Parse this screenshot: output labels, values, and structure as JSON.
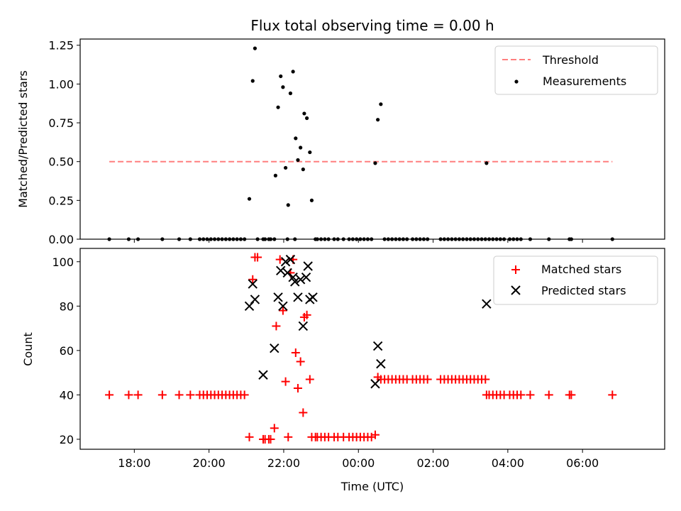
{
  "chart_data": [
    {
      "type": "scatter",
      "title": "Flux total observing time = 0.00 h",
      "xlabel": "",
      "ylabel": "Matched/Predicted stars",
      "xlim_hours": [
        16.55,
        32.2
      ],
      "ylim": [
        0,
        1.29
      ],
      "yticks": [
        0.0,
        0.25,
        0.5,
        0.75,
        1.0,
        1.25
      ],
      "ytick_labels": [
        "0.00",
        "0.25",
        "0.50",
        "0.75",
        "1.00",
        "1.25"
      ],
      "legend_position": "top-right",
      "threshold": {
        "name": "Threshold",
        "value": 0.5,
        "x_range_hours": [
          17.33,
          30.8
        ],
        "color": "#ff7f7f",
        "style": "dashed"
      },
      "series": [
        {
          "name": "Measurements",
          "color": "#000000",
          "marker": "dot",
          "points": [
            [
              17.33,
              0
            ],
            [
              17.85,
              0
            ],
            [
              18.1,
              0
            ],
            [
              18.75,
              0
            ],
            [
              19.2,
              0
            ],
            [
              19.5,
              0
            ],
            [
              19.75,
              0
            ],
            [
              19.85,
              0
            ],
            [
              19.95,
              0
            ],
            [
              20.05,
              0
            ],
            [
              20.15,
              0
            ],
            [
              20.25,
              0
            ],
            [
              20.35,
              0
            ],
            [
              20.45,
              0
            ],
            [
              20.55,
              0
            ],
            [
              20.65,
              0
            ],
            [
              20.75,
              0
            ],
            [
              20.85,
              0
            ],
            [
              20.95,
              0
            ],
            [
              21.08,
              0.26
            ],
            [
              21.17,
              1.02
            ],
            [
              21.23,
              1.23
            ],
            [
              21.3,
              0
            ],
            [
              21.45,
              0
            ],
            [
              21.5,
              0
            ],
            [
              21.6,
              0
            ],
            [
              21.65,
              0
            ],
            [
              21.75,
              0
            ],
            [
              21.78,
              0.41
            ],
            [
              21.85,
              0.85
            ],
            [
              21.92,
              1.05
            ],
            [
              21.98,
              0.98
            ],
            [
              22.05,
              0.46
            ],
            [
              22.1,
              0
            ],
            [
              22.12,
              0.22
            ],
            [
              22.18,
              0.94
            ],
            [
              22.25,
              1.08
            ],
            [
              22.3,
              0
            ],
            [
              22.32,
              0.65
            ],
            [
              22.38,
              0.51
            ],
            [
              22.45,
              0.59
            ],
            [
              22.52,
              0.45
            ],
            [
              22.55,
              0.81
            ],
            [
              22.62,
              0.78
            ],
            [
              22.7,
              0.56
            ],
            [
              22.75,
              0.25
            ],
            [
              22.85,
              0
            ],
            [
              22.9,
              0
            ],
            [
              23.0,
              0
            ],
            [
              23.1,
              0
            ],
            [
              23.2,
              0
            ],
            [
              23.35,
              0
            ],
            [
              23.45,
              0
            ],
            [
              23.6,
              0
            ],
            [
              23.75,
              0
            ],
            [
              23.85,
              0
            ],
            [
              23.95,
              0
            ],
            [
              24.05,
              0
            ],
            [
              24.15,
              0
            ],
            [
              24.25,
              0
            ],
            [
              24.35,
              0
            ],
            [
              24.45,
              0.49
            ],
            [
              24.52,
              0.77
            ],
            [
              24.6,
              0.87
            ],
            [
              24.7,
              0
            ],
            [
              24.8,
              0
            ],
            [
              24.9,
              0
            ],
            [
              25.0,
              0
            ],
            [
              25.1,
              0
            ],
            [
              25.2,
              0
            ],
            [
              25.3,
              0
            ],
            [
              25.45,
              0
            ],
            [
              25.55,
              0
            ],
            [
              25.65,
              0
            ],
            [
              25.75,
              0
            ],
            [
              25.85,
              0
            ],
            [
              26.2,
              0
            ],
            [
              26.3,
              0
            ],
            [
              26.4,
              0
            ],
            [
              26.5,
              0
            ],
            [
              26.6,
              0
            ],
            [
              26.7,
              0
            ],
            [
              26.8,
              0
            ],
            [
              26.9,
              0
            ],
            [
              27.0,
              0
            ],
            [
              27.1,
              0
            ],
            [
              27.2,
              0
            ],
            [
              27.3,
              0
            ],
            [
              27.4,
              0
            ],
            [
              27.43,
              0.49
            ],
            [
              27.5,
              0
            ],
            [
              27.6,
              0
            ],
            [
              27.7,
              0
            ],
            [
              27.8,
              0
            ],
            [
              27.9,
              0
            ],
            [
              28.05,
              0
            ],
            [
              28.15,
              0
            ],
            [
              28.25,
              0
            ],
            [
              28.35,
              0
            ],
            [
              28.6,
              0
            ],
            [
              29.1,
              0
            ],
            [
              29.65,
              0
            ],
            [
              29.7,
              0
            ],
            [
              30.8,
              0
            ]
          ]
        }
      ]
    },
    {
      "type": "scatter",
      "title": "",
      "xlabel": "Time (UTC)",
      "ylabel": "Count",
      "xlim_hours": [
        16.55,
        32.2
      ],
      "ylim": [
        15.5,
        106
      ],
      "yticks": [
        20,
        40,
        60,
        80,
        100
      ],
      "ytick_labels": [
        "20",
        "40",
        "60",
        "80",
        "100"
      ],
      "xticks_hours": [
        18,
        20,
        22,
        24,
        26,
        28,
        30
      ],
      "xtick_labels": [
        "18:00",
        "20:00",
        "22:00",
        "00:00",
        "02:00",
        "04:00",
        "06:00"
      ],
      "legend_position": "top-right",
      "series": [
        {
          "name": "Matched stars",
          "color": "#ff0000",
          "marker": "plus",
          "points": [
            [
              17.33,
              40
            ],
            [
              17.85,
              40
            ],
            [
              18.1,
              40
            ],
            [
              18.75,
              40
            ],
            [
              19.2,
              40
            ],
            [
              19.5,
              40
            ],
            [
              19.75,
              40
            ],
            [
              19.85,
              40
            ],
            [
              19.95,
              40
            ],
            [
              20.05,
              40
            ],
            [
              20.15,
              40
            ],
            [
              20.25,
              40
            ],
            [
              20.35,
              40
            ],
            [
              20.45,
              40
            ],
            [
              20.55,
              40
            ],
            [
              20.65,
              40
            ],
            [
              20.75,
              40
            ],
            [
              20.85,
              40
            ],
            [
              20.95,
              40
            ],
            [
              21.08,
              21
            ],
            [
              21.17,
              92
            ],
            [
              21.23,
              102
            ],
            [
              21.3,
              102
            ],
            [
              21.45,
              20
            ],
            [
              21.5,
              20
            ],
            [
              21.6,
              20
            ],
            [
              21.65,
              20
            ],
            [
              21.75,
              25
            ],
            [
              21.8,
              71
            ],
            [
              21.9,
              101
            ],
            [
              21.98,
              78
            ],
            [
              22.05,
              46
            ],
            [
              22.12,
              21
            ],
            [
              22.18,
              95
            ],
            [
              22.25,
              101
            ],
            [
              22.32,
              59
            ],
            [
              22.38,
              43
            ],
            [
              22.45,
              55
            ],
            [
              22.52,
              32
            ],
            [
              22.55,
              75
            ],
            [
              22.62,
              76
            ],
            [
              22.7,
              47
            ],
            [
              22.75,
              21
            ],
            [
              22.85,
              21
            ],
            [
              22.9,
              21
            ],
            [
              23.0,
              21
            ],
            [
              23.1,
              21
            ],
            [
              23.2,
              21
            ],
            [
              23.35,
              21
            ],
            [
              23.45,
              21
            ],
            [
              23.6,
              21
            ],
            [
              23.75,
              21
            ],
            [
              23.85,
              21
            ],
            [
              23.95,
              21
            ],
            [
              24.05,
              21
            ],
            [
              24.15,
              21
            ],
            [
              24.25,
              21
            ],
            [
              24.35,
              21
            ],
            [
              24.45,
              22
            ],
            [
              24.52,
              48
            ],
            [
              24.6,
              47
            ],
            [
              24.7,
              47
            ],
            [
              24.8,
              47
            ],
            [
              24.9,
              47
            ],
            [
              25.0,
              47
            ],
            [
              25.1,
              47
            ],
            [
              25.2,
              47
            ],
            [
              25.3,
              47
            ],
            [
              25.45,
              47
            ],
            [
              25.55,
              47
            ],
            [
              25.65,
              47
            ],
            [
              25.75,
              47
            ],
            [
              25.85,
              47
            ],
            [
              26.2,
              47
            ],
            [
              26.3,
              47
            ],
            [
              26.4,
              47
            ],
            [
              26.5,
              47
            ],
            [
              26.6,
              47
            ],
            [
              26.7,
              47
            ],
            [
              26.8,
              47
            ],
            [
              26.9,
              47
            ],
            [
              27.0,
              47
            ],
            [
              27.1,
              47
            ],
            [
              27.2,
              47
            ],
            [
              27.3,
              47
            ],
            [
              27.4,
              47
            ],
            [
              27.43,
              40
            ],
            [
              27.5,
              40
            ],
            [
              27.6,
              40
            ],
            [
              27.7,
              40
            ],
            [
              27.8,
              40
            ],
            [
              27.9,
              40
            ],
            [
              28.05,
              40
            ],
            [
              28.15,
              40
            ],
            [
              28.25,
              40
            ],
            [
              28.35,
              40
            ],
            [
              28.6,
              40
            ],
            [
              29.1,
              40
            ],
            [
              29.65,
              40
            ],
            [
              29.7,
              40
            ],
            [
              30.8,
              40
            ]
          ]
        },
        {
          "name": "Predicted stars",
          "color": "#000000",
          "marker": "cross",
          "points": [
            [
              21.08,
              80
            ],
            [
              21.17,
              90
            ],
            [
              21.23,
              83
            ],
            [
              21.45,
              49
            ],
            [
              21.75,
              61
            ],
            [
              21.85,
              84
            ],
            [
              21.92,
              96
            ],
            [
              21.98,
              80
            ],
            [
              22.05,
              100
            ],
            [
              22.1,
              95
            ],
            [
              22.18,
              101
            ],
            [
              22.25,
              93
            ],
            [
              22.3,
              91
            ],
            [
              22.38,
              84
            ],
            [
              22.45,
              92
            ],
            [
              22.52,
              71
            ],
            [
              22.6,
              93
            ],
            [
              22.65,
              98
            ],
            [
              22.7,
              83
            ],
            [
              22.78,
              84
            ],
            [
              24.45,
              45
            ],
            [
              24.52,
              62
            ],
            [
              24.6,
              54
            ],
            [
              27.43,
              81
            ]
          ]
        }
      ]
    }
  ]
}
